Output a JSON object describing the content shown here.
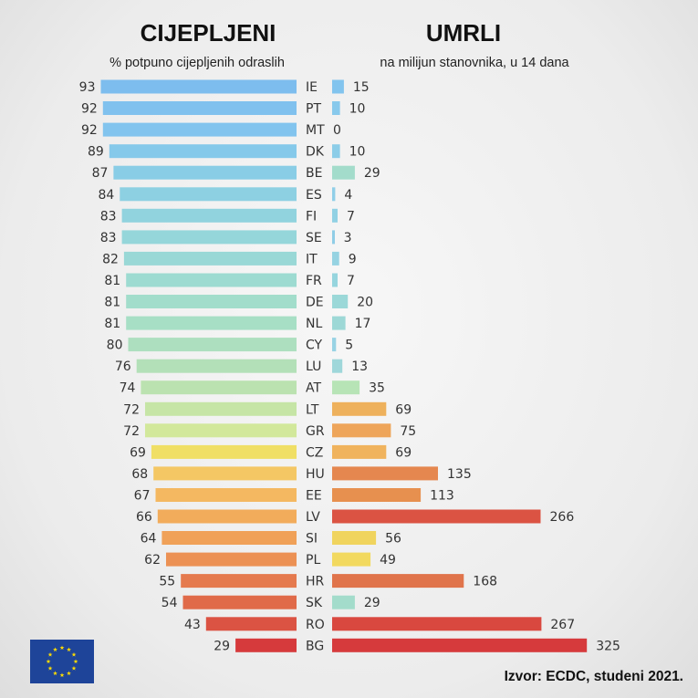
{
  "chart_data": {
    "type": "bar",
    "layout": "butterfly",
    "left_panel": {
      "title": "CIJEPLJENI",
      "subtitle": "% potpuno cijepljenih odraslih"
    },
    "right_panel": {
      "title": "UMRLI",
      "subtitle": "na milijun stanovnika, u 14 dana"
    },
    "categories": [
      "IE",
      "PT",
      "MT",
      "DK",
      "BE",
      "ES",
      "FI",
      "SE",
      "IT",
      "FR",
      "DE",
      "NL",
      "CY",
      "LU",
      "AT",
      "LT",
      "GR",
      "CZ",
      "HU",
      "EE",
      "LV",
      "SI",
      "PL",
      "HR",
      "SK",
      "RO",
      "BG"
    ],
    "series": [
      {
        "name": "Cijepljeni",
        "unit": "% potpuno cijepljenih odraslih",
        "values": [
          93,
          92,
          92,
          89,
          87,
          84,
          83,
          83,
          82,
          81,
          81,
          81,
          80,
          76,
          74,
          72,
          72,
          69,
          68,
          67,
          66,
          64,
          62,
          55,
          54,
          43,
          29
        ],
        "colors": [
          "#7dbdee",
          "#80c1ee",
          "#82c4ee",
          "#85c9ea",
          "#89cde6",
          "#8dd0e2",
          "#91d3de",
          "#95d6da",
          "#99d8d6",
          "#9ddbd1",
          "#a2ddcb",
          "#a7dfc5",
          "#addfbf",
          "#b3e0b8",
          "#bbe2b0",
          "#c6e5a6",
          "#d2e89b",
          "#f0df65",
          "#f4c764",
          "#f4b861",
          "#f2ac5b",
          "#f0a158",
          "#ec9154",
          "#e57a4e",
          "#e06a49",
          "#db5343",
          "#d63a3c"
        ]
      },
      {
        "name": "Umrli",
        "unit": "na milijun stanovnika, u 14 dana",
        "values": [
          15,
          10,
          0,
          10,
          29,
          4,
          7,
          3,
          9,
          7,
          20,
          17,
          5,
          13,
          35,
          69,
          75,
          69,
          135,
          113,
          266,
          56,
          49,
          168,
          29,
          267,
          325
        ],
        "colors": [
          "#82c4ee",
          "#88c9ec",
          "#88c9ec",
          "#8ccde8",
          "#a3dccb",
          "#90cfe8",
          "#91d1e4",
          "#8fcde6",
          "#96d3e2",
          "#96d5de",
          "#9bd8d8",
          "#9dd8d6",
          "#98d3e4",
          "#9fd7da",
          "#b7e4b6",
          "#eeb15c",
          "#eea55a",
          "#f0b35d",
          "#e5874f",
          "#e7904f",
          "#db5343",
          "#f0d45e",
          "#f2d95f",
          "#e0744b",
          "#a3dccb",
          "#d9483f",
          "#d63a3c"
        ]
      }
    ],
    "source": "Izvor: ECDC, studeni 2021."
  },
  "emblem": {
    "name": "EU flag",
    "background": "#1e4499",
    "stars": "#ffdd00"
  }
}
